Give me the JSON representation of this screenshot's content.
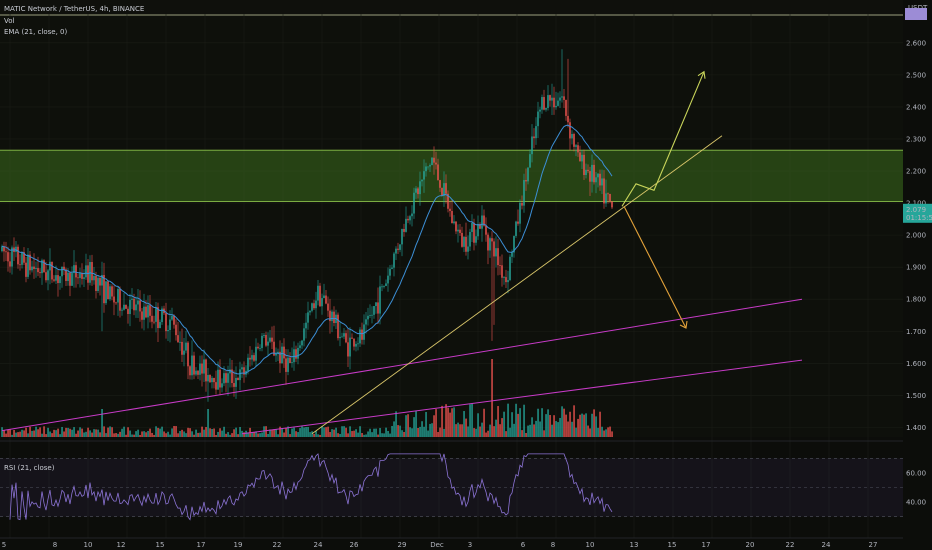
{
  "header": {
    "symbol_line": "MATIC Network / TetherUS, 4h, BINANCE",
    "vol_label": "Vol",
    "ema_label": "EMA (21, close, 0)",
    "rsi_label": "RSI (21, close)",
    "currency": "USDT"
  },
  "price_scale": {
    "ticks": [
      "2.600",
      "2.500",
      "2.400",
      "2.300",
      "2.200",
      "2.100",
      "2.000",
      "1.900",
      "1.800",
      "1.700",
      "1.600",
      "1.500",
      "1.400"
    ],
    "last_price": "2.079",
    "countdown": "01:15:54",
    "last_price_color": "#26a69a"
  },
  "rsi_scale": {
    "ticks": [
      "60.00",
      "40.00"
    ]
  },
  "time_axis": {
    "labels": [
      "5",
      "8",
      "10",
      "12",
      "15",
      "17",
      "19",
      "22",
      "24",
      "26",
      "29",
      "Dec",
      "3",
      "6",
      "8",
      "10",
      "13",
      "15",
      "17",
      "20",
      "22",
      "24",
      "27"
    ]
  },
  "colors": {
    "up": "#26a69a",
    "down": "#ef5350",
    "ema": "#3c8fd6",
    "zone_fill": "#3b6b1e",
    "zone_line": "#8bc34a",
    "support_trend": "#d9c66a",
    "channel": "#c83bc8",
    "bull_arrow": "#c8d45a",
    "bear_arrow": "#e3a23a",
    "rsi_line": "#8c74d6"
  },
  "chart_data": {
    "type": "candlestick",
    "symbol": "MATIC/USDT",
    "interval": "4h",
    "ylim": [
      1.37,
      2.69
    ],
    "resistance_zone": [
      2.105,
      2.265
    ],
    "last_close": 2.079,
    "ema_period": 21,
    "rsi_period": 21,
    "rsi_levels": [
      70,
      50,
      30
    ],
    "anchors": [
      {
        "i": 0,
        "p": 1.95
      },
      {
        "i": 15,
        "p": 1.9
      },
      {
        "i": 30,
        "p": 1.87
      },
      {
        "i": 45,
        "p": 1.88
      },
      {
        "i": 55,
        "p": 1.8
      },
      {
        "i": 70,
        "p": 1.76
      },
      {
        "i": 85,
        "p": 1.73
      },
      {
        "i": 95,
        "p": 1.59
      },
      {
        "i": 110,
        "p": 1.55
      },
      {
        "i": 120,
        "p": 1.56
      },
      {
        "i": 130,
        "p": 1.68
      },
      {
        "i": 145,
        "p": 1.59
      },
      {
        "i": 158,
        "p": 1.83
      },
      {
        "i": 172,
        "p": 1.66
      },
      {
        "i": 180,
        "p": 1.68
      },
      {
        "i": 192,
        "p": 1.86
      },
      {
        "i": 205,
        "p": 2.1
      },
      {
        "i": 215,
        "p": 2.24
      },
      {
        "i": 225,
        "p": 2.05
      },
      {
        "i": 230,
        "p": 1.98
      },
      {
        "i": 240,
        "p": 2.04
      },
      {
        "i": 252,
        "p": 1.86
      },
      {
        "i": 262,
        "p": 2.18
      },
      {
        "i": 270,
        "p": 2.42
      },
      {
        "i": 280,
        "p": 2.43
      },
      {
        "i": 288,
        "p": 2.24
      },
      {
        "i": 296,
        "p": 2.18
      },
      {
        "i": 305,
        "p": 2.08
      }
    ],
    "n_candles": 306,
    "yellow_wedge_line": [
      {
        "date_index": 155,
        "price": 1.38
      },
      {
        "date_index": 360,
        "price": 2.31
      }
    ],
    "channel_lines": [
      [
        {
          "date_index": 0,
          "price": 1.39
        },
        {
          "date_index": 400,
          "price": 1.8
        }
      ],
      [
        {
          "date_index": 120,
          "price": 1.38
        },
        {
          "date_index": 400,
          "price": 1.61
        }
      ]
    ],
    "bull_projection": [
      2.09,
      2.16,
      2.14,
      2.51
    ],
    "bear_projection": [
      2.09,
      1.71
    ]
  }
}
